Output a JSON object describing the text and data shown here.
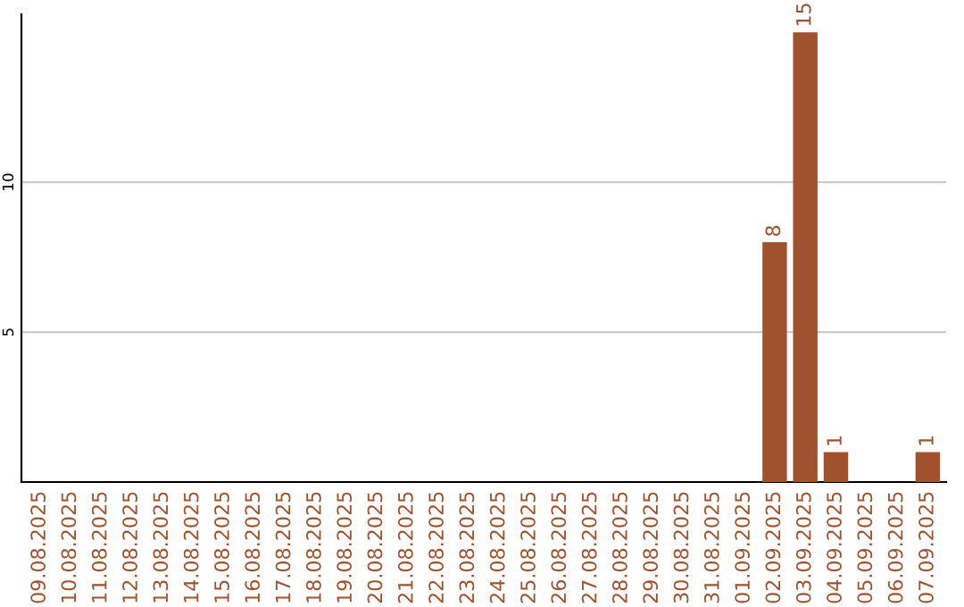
{
  "chart_data": {
    "type": "bar",
    "categories": [
      "09.08.2025",
      "10.08.2025",
      "11.08.2025",
      "12.08.2025",
      "13.08.2025",
      "14.08.2025",
      "15.08.2025",
      "16.08.2025",
      "17.08.2025",
      "18.08.2025",
      "19.08.2025",
      "20.08.2025",
      "21.08.2025",
      "22.08.2025",
      "23.08.2025",
      "24.08.2025",
      "25.08.2025",
      "26.08.2025",
      "27.08.2025",
      "28.08.2025",
      "29.08.2025",
      "30.08.2025",
      "31.08.2025",
      "01.09.2025",
      "02.09.2025",
      "03.09.2025",
      "04.09.2025",
      "05.09.2025",
      "06.09.2025",
      "07.09.2025"
    ],
    "values": [
      0,
      0,
      0,
      0,
      0,
      0,
      0,
      0,
      0,
      0,
      0,
      0,
      0,
      0,
      0,
      0,
      0,
      0,
      0,
      0,
      0,
      0,
      0,
      0,
      8,
      15,
      1,
      0,
      0,
      1
    ],
    "value_labels": [
      null,
      null,
      null,
      null,
      null,
      null,
      null,
      null,
      null,
      null,
      null,
      null,
      null,
      null,
      null,
      null,
      null,
      null,
      null,
      null,
      null,
      null,
      null,
      null,
      "8",
      "15",
      "1",
      null,
      null,
      "1"
    ],
    "color": "#a0522d",
    "ylim": [
      0,
      15.6
    ],
    "yticks": [
      5,
      10
    ],
    "grid": "y"
  }
}
